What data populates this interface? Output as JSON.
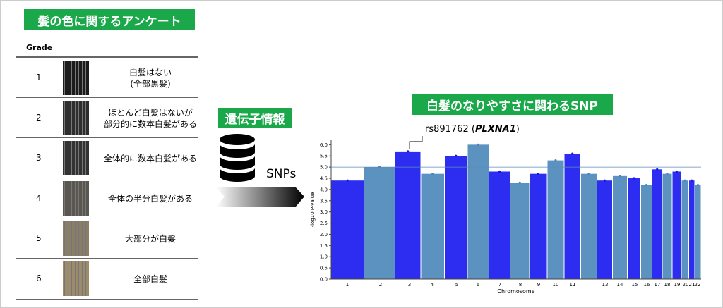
{
  "survey": {
    "title": "髪の色に関するアンケート",
    "header": "Grade",
    "rows": [
      {
        "grade": 1,
        "description": [
          "白髪はない",
          "(全部黒髪)"
        ]
      },
      {
        "grade": 2,
        "description": [
          "ほとんど白髪はないが",
          "部分的に数本白髪がある"
        ]
      },
      {
        "grade": 3,
        "description": [
          "全体的に数本白髪がある"
        ]
      },
      {
        "grade": 4,
        "description": [
          "全体の半分白髪がある"
        ]
      },
      {
        "grade": 5,
        "description": [
          "大部分が白髪"
        ]
      },
      {
        "grade": 6,
        "description": [
          "全部白髪"
        ]
      }
    ]
  },
  "genetics": {
    "title": "遺伝子情報",
    "label": "SNPs"
  },
  "chart_data": {
    "type": "manhattan",
    "title": "白髪のなりやすさに関わるSNP",
    "x_label": "Chromosome",
    "y_label": "-log10 P-value",
    "categories": [
      "1",
      "2",
      "3",
      "4",
      "5",
      "6",
      "7",
      "8",
      "9",
      "10",
      "11",
      null,
      "13",
      "14",
      "15",
      "16",
      "17",
      "18",
      "19",
      "20",
      "21",
      "22"
    ],
    "values": [
      4.4,
      5.0,
      5.7,
      4.7,
      5.5,
      6.0,
      4.8,
      4.3,
      4.7,
      5.3,
      5.6,
      4.7,
      4.4,
      4.6,
      4.5,
      4.2,
      4.9,
      4.7,
      4.8,
      4.4,
      4.4,
      4.2
    ],
    "colors": [
      "#1616f0",
      "#4a86b8"
    ],
    "ylim": [
      0,
      6.2
    ],
    "yticks": [
      {
        "value": 0,
        "label": "0.0"
      },
      {
        "value": 0.5,
        "label": "0.5"
      },
      {
        "value": 1,
        "label": "1.0"
      },
      {
        "value": 1.5,
        "label": "1.5"
      },
      {
        "value": 2,
        "label": "2.0"
      },
      {
        "value": 2.5,
        "label": "2.5"
      },
      {
        "value": 3,
        "label": "3.0"
      },
      {
        "value": 3.5,
        "label": "3.5"
      },
      {
        "value": 4,
        "label": "4.0"
      },
      {
        "value": 4.5,
        "label": "4.5"
      },
      {
        "value": 5,
        "label": "5.0"
      },
      {
        "value": 5.5,
        "label": "5.5"
      },
      {
        "value": 6,
        "label": "6.0"
      }
    ],
    "threshold": 5,
    "threshold_color": "#5b8db8",
    "annotation": {
      "prefix": "rs891762 (",
      "gene": "PLXNA1",
      "suffix": ")"
    },
    "annotation_index": 2
  }
}
